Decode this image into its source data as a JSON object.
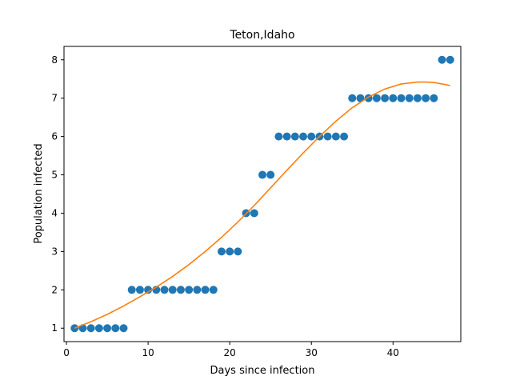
{
  "chart_data": {
    "type": "scatter",
    "title": "Teton,Idaho",
    "xlabel": "Days since infection",
    "ylabel": "Population infected",
    "xlim": [
      -0.3,
      48.3
    ],
    "ylim": [
      0.65,
      8.35
    ],
    "xticks": [
      0,
      10,
      20,
      30,
      40
    ],
    "yticks": [
      1,
      2,
      3,
      4,
      5,
      6,
      7,
      8
    ],
    "grid": false,
    "series": [
      {
        "kind": "scatter",
        "color": "#1f77b4",
        "x": [
          1,
          2,
          3,
          4,
          5,
          6,
          7,
          8,
          9,
          10,
          11,
          12,
          13,
          14,
          15,
          16,
          17,
          18,
          19,
          20,
          21,
          22,
          23,
          24,
          25,
          26,
          27,
          28,
          29,
          30,
          31,
          32,
          33,
          34,
          35,
          36,
          37,
          38,
          39,
          40,
          41,
          42,
          43,
          44,
          45,
          46,
          47
        ],
        "y": [
          1,
          1,
          1,
          1,
          1,
          1,
          1,
          2,
          2,
          2,
          2,
          2,
          2,
          2,
          2,
          2,
          2,
          2,
          3,
          3,
          3,
          4,
          4,
          5,
          5,
          6,
          6,
          6,
          6,
          6,
          6,
          6,
          6,
          6,
          7,
          7,
          7,
          7,
          7,
          7,
          7,
          7,
          7,
          7,
          7,
          8,
          8
        ]
      },
      {
        "kind": "line",
        "color": "#ff7f0e",
        "x": [
          1,
          3,
          5,
          7,
          9,
          11,
          13,
          15,
          17,
          19,
          21,
          23,
          25,
          27,
          29,
          31,
          33,
          35,
          37,
          39,
          41,
          43,
          44,
          45,
          47
        ],
        "y": [
          1.0,
          1.17,
          1.36,
          1.58,
          1.82,
          2.07,
          2.35,
          2.66,
          3.0,
          3.37,
          3.77,
          4.2,
          4.66,
          5.12,
          5.57,
          6.0,
          6.4,
          6.75,
          7.03,
          7.24,
          7.37,
          7.42,
          7.42,
          7.41,
          7.33
        ]
      }
    ]
  }
}
